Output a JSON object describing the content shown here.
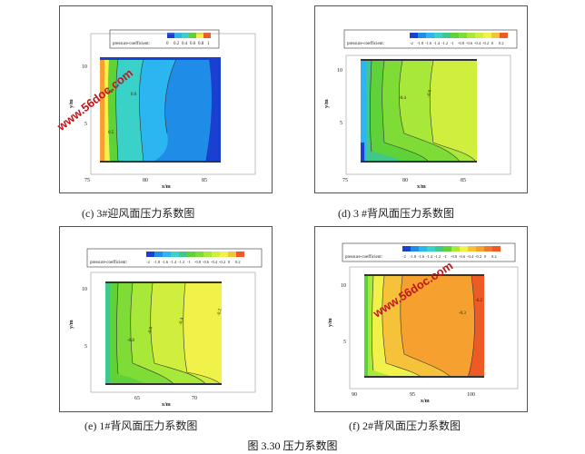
{
  "figure_caption": "图 3.30 压力系数图",
  "watermark": "www.56doc.com",
  "panels": {
    "c": {
      "caption": "(c) 3#迎风面压力系数图",
      "legend_title": "pressure-coefficient:",
      "legend_ticks": [
        "0",
        "0.2",
        "0.4",
        "0.6",
        "0.8",
        "1"
      ],
      "x_label": "x/m",
      "y_label": "y/m",
      "x_ticks": [
        "75",
        "80",
        "85"
      ],
      "y_ticks": [
        "10",
        "5"
      ],
      "contour_labels": [
        "0.8",
        "0.6",
        "0.5"
      ]
    },
    "d": {
      "caption": "(d) 3 #背风面压力系数图",
      "legend_title": "pressure-coefficient:",
      "legend_ticks": [
        "-2",
        "-1.8",
        "-1.6",
        "-1.4",
        "-1.2",
        "-1",
        "-0.8",
        "-0.6",
        "-0.4",
        "-0.2",
        "0",
        "0.2"
      ],
      "x_label": "x/m",
      "y_label": "y/m",
      "x_ticks": [
        "75",
        "80",
        "85"
      ],
      "y_ticks": [
        "10",
        "5"
      ],
      "contour_labels": [
        "-0.4",
        "-0.6"
      ]
    },
    "e": {
      "caption": "(e) 1#背风面压力系数图",
      "legend_title": "pressure-coefficient:",
      "legend_ticks": [
        "-2",
        "-1.8",
        "-1.6",
        "-1.4",
        "-1.2",
        "-1",
        "-0.8",
        "-0.6",
        "-0.4",
        "-0.2",
        "0",
        "0.2"
      ],
      "x_label": "x/m",
      "y_label": "y/m",
      "x_ticks": [
        "65",
        "70"
      ],
      "y_ticks": [
        "10",
        "5"
      ],
      "contour_labels": [
        "-0.8",
        "-0.6",
        "-0.4",
        "-0.2"
      ]
    },
    "f": {
      "caption": "(f) 2#背风面压力系数图",
      "legend_title": "pressure-coefficient:",
      "legend_ticks": [
        "-2",
        "-1.8",
        "-1.6",
        "-1.4",
        "-1.2",
        "-1",
        "-0.8",
        "-0.6",
        "-0.4",
        "-0.2",
        "0",
        "0.2"
      ],
      "x_label": "x/m",
      "y_label": "y/m",
      "x_ticks": [
        "90",
        "95",
        "100"
      ],
      "y_ticks": [
        "10",
        "5"
      ],
      "contour_labels": [
        "-0.2",
        "-0.3"
      ]
    }
  },
  "colors": {
    "dark_blue": "#1a3fd1",
    "blue": "#1f8de8",
    "light_blue": "#2bb6f2",
    "cyan": "#3ad1c8",
    "teal_green": "#3ec88a",
    "green": "#5fd23a",
    "yellow_green": "#a8e838",
    "yellow": "#f0f24a",
    "gold": "#f6c23a",
    "orange": "#f6a030",
    "red_orange": "#ee5a25"
  }
}
